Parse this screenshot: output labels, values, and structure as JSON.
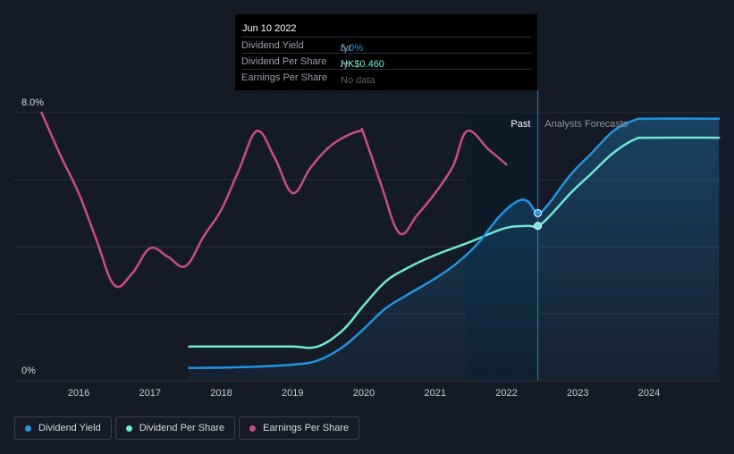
{
  "tooltip": {
    "date": "Jun 10 2022",
    "rows": [
      {
        "label": "Dividend Yield",
        "value": "5.0%",
        "unit": " /yr"
      },
      {
        "label": "Dividend Per Share",
        "value": "HK$0.460",
        "unit": " /yr"
      },
      {
        "label": "Earnings Per Share",
        "value": "No data",
        "unit": ""
      }
    ]
  },
  "labels": {
    "past": "Past",
    "forecast": "Analysts Forecasts",
    "y_top": "8.0%",
    "y_bottom": "0%"
  },
  "legend": [
    {
      "label": "Dividend Yield",
      "color": "#2394df"
    },
    {
      "label": "Dividend Per Share",
      "color": "#6fe8d4"
    },
    {
      "label": "Earnings Per Share",
      "color": "#c94b8b"
    }
  ],
  "chart_data": {
    "type": "line",
    "x_ticks": [
      "2016",
      "2017",
      "2018",
      "2019",
      "2020",
      "2021",
      "2022",
      "2023",
      "2024"
    ],
    "ylim": [
      0,
      8
    ],
    "y_unit": "%",
    "past_end": 2022.45,
    "past_region_start": 2021.43,
    "highlight_date": 2022.44,
    "series": [
      {
        "name": "Dividend Yield",
        "color": "#2394df",
        "points": [
          [
            2017.55,
            0.38
          ],
          [
            2018.0,
            0.39
          ],
          [
            2018.5,
            0.42
          ],
          [
            2019.0,
            0.48
          ],
          [
            2019.35,
            0.6
          ],
          [
            2019.7,
            1.0
          ],
          [
            2020.0,
            1.55
          ],
          [
            2020.3,
            2.15
          ],
          [
            2020.6,
            2.55
          ],
          [
            2021.0,
            3.05
          ],
          [
            2021.3,
            3.5
          ],
          [
            2021.6,
            4.1
          ],
          [
            2021.9,
            4.9
          ],
          [
            2022.15,
            5.35
          ],
          [
            2022.3,
            5.35
          ],
          [
            2022.44,
            5.0
          ],
          [
            2022.6,
            5.3
          ],
          [
            2022.9,
            6.15
          ],
          [
            2023.2,
            6.8
          ],
          [
            2023.5,
            7.45
          ],
          [
            2023.8,
            7.78
          ],
          [
            2024.0,
            7.82
          ],
          [
            2024.98,
            7.82
          ]
        ]
      },
      {
        "name": "Dividend Per Share",
        "color": "#6fe8d4",
        "points": [
          [
            2017.55,
            1.02
          ],
          [
            2018.5,
            1.02
          ],
          [
            2019.0,
            1.02
          ],
          [
            2019.35,
            1.02
          ],
          [
            2019.7,
            1.5
          ],
          [
            2020.0,
            2.25
          ],
          [
            2020.3,
            2.95
          ],
          [
            2020.6,
            3.35
          ],
          [
            2021.0,
            3.75
          ],
          [
            2021.5,
            4.15
          ],
          [
            2021.9,
            4.5
          ],
          [
            2022.1,
            4.6
          ],
          [
            2022.3,
            4.62
          ],
          [
            2022.44,
            4.62
          ],
          [
            2022.6,
            4.9
          ],
          [
            2022.9,
            5.6
          ],
          [
            2023.2,
            6.2
          ],
          [
            2023.5,
            6.8
          ],
          [
            2023.8,
            7.2
          ],
          [
            2024.0,
            7.25
          ],
          [
            2024.98,
            7.25
          ]
        ]
      },
      {
        "name": "Earnings Per Share",
        "color": "#c94b8b",
        "points": [
          [
            2015.48,
            8.0
          ],
          [
            2015.75,
            6.7
          ],
          [
            2016.0,
            5.6
          ],
          [
            2016.25,
            4.2
          ],
          [
            2016.5,
            2.85
          ],
          [
            2016.75,
            3.2
          ],
          [
            2017.0,
            3.95
          ],
          [
            2017.25,
            3.7
          ],
          [
            2017.5,
            3.42
          ],
          [
            2017.75,
            4.3
          ],
          [
            2018.0,
            5.1
          ],
          [
            2018.25,
            6.3
          ],
          [
            2018.5,
            7.45
          ],
          [
            2018.75,
            6.65
          ],
          [
            2019.0,
            5.6
          ],
          [
            2019.25,
            6.35
          ],
          [
            2019.5,
            6.95
          ],
          [
            2019.75,
            7.3
          ],
          [
            2019.95,
            7.45
          ],
          [
            2020.0,
            7.35
          ],
          [
            2020.25,
            5.8
          ],
          [
            2020.5,
            4.4
          ],
          [
            2020.75,
            4.95
          ],
          [
            2021.0,
            5.6
          ],
          [
            2021.25,
            6.4
          ],
          [
            2021.45,
            7.45
          ],
          [
            2021.75,
            6.9
          ],
          [
            2022.0,
            6.45
          ]
        ]
      }
    ]
  }
}
